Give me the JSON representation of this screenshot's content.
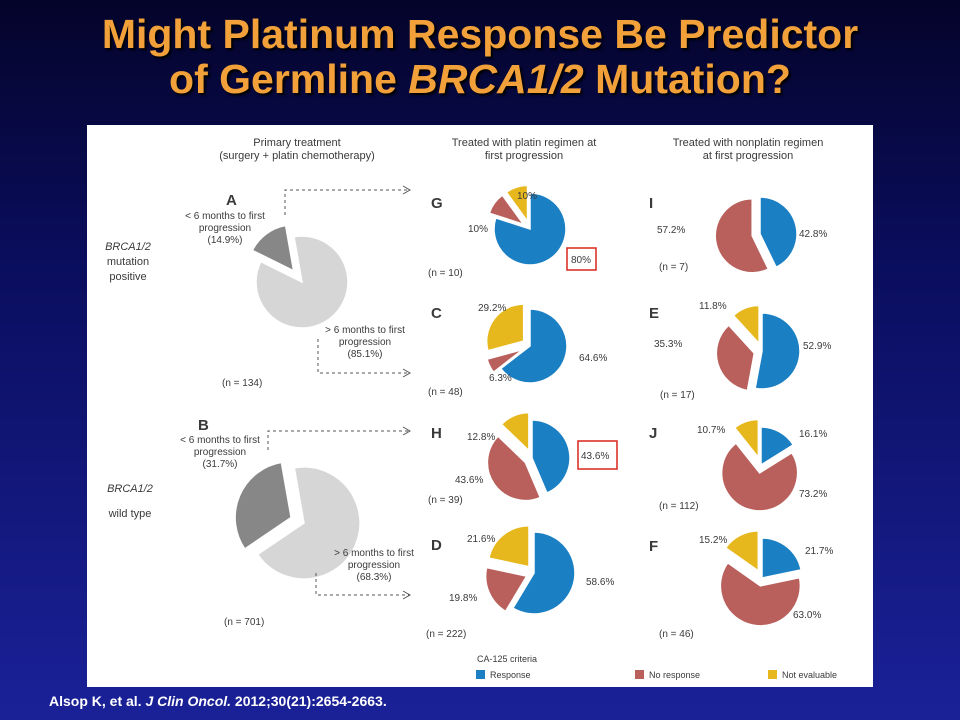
{
  "title": {
    "line1": "Might Platinum Response Be Predictor",
    "line2_pre": "of Germline ",
    "line2_italic": "BRCA1/2",
    "line2_post": " Mutation?"
  },
  "citation": {
    "pre": "Alsop K, et al. ",
    "journal": "J Clin Oncol.",
    "post": " 2012;30(21):2654-2663."
  },
  "colors": {
    "response": "#1b7fc4",
    "no_response": "#b9605c",
    "not_evaluable": "#e7b81d",
    "early_progression": "#878787",
    "late_progression": "#d6d6d6",
    "highlight": "#d9261c"
  },
  "column_headers": {
    "primary": [
      "Primary treatment",
      "(surgery + platin chemotherapy)"
    ],
    "platin": [
      "Treated with platin regimen at",
      "first progression"
    ],
    "nonplatin": [
      "Treated with nonplatin regimen",
      "at first progression"
    ]
  },
  "row_labels": {
    "mutation": [
      "BRCA1/2",
      "mutation",
      "positive"
    ],
    "wildtype": [
      "BRCA1/2",
      "wild type"
    ]
  },
  "legend": {
    "title": "CA-125 criteria",
    "items": [
      "Response",
      "No response",
      "Not evaluable"
    ]
  },
  "chart_data": [
    {
      "type": "pie",
      "id": "A",
      "n": "(n = 134)",
      "slices": [
        {
          "label": "< 6 months to first progression",
          "value": 14.9,
          "display": [
            "< 6 months to first",
            "progression",
            "(14.9%)"
          ]
        },
        {
          "label": "> 6 months to first progression",
          "value": 85.1,
          "display": [
            "> 6 months to first",
            "progression",
            "(85.1%)"
          ]
        }
      ]
    },
    {
      "type": "pie",
      "id": "B",
      "n": "(n = 701)",
      "slices": [
        {
          "label": "< 6 months to first progression",
          "value": 31.7,
          "display": [
            "< 6 months to first",
            "progression",
            "(31.7%)"
          ]
        },
        {
          "label": "> 6 months to first progression",
          "value": 68.3,
          "display": [
            "> 6 months to first",
            "progression",
            "(68.3%)"
          ]
        }
      ]
    },
    {
      "type": "pie",
      "id": "G",
      "n": "(n = 10)",
      "slices": [
        {
          "label": "Response",
          "value": 80,
          "display": "80%",
          "highlight": true
        },
        {
          "label": "No response",
          "value": 10,
          "display": "10%"
        },
        {
          "label": "Not evaluable",
          "value": 10,
          "display": "10%"
        }
      ]
    },
    {
      "type": "pie",
      "id": "C",
      "n": "(n = 48)",
      "slices": [
        {
          "label": "Response",
          "value": 64.6,
          "display": "64.6%"
        },
        {
          "label": "No response",
          "value": 6.3,
          "display": "6.3%"
        },
        {
          "label": "Not evaluable",
          "value": 29.2,
          "display": "29.2%"
        }
      ]
    },
    {
      "type": "pie",
      "id": "H",
      "n": "(n = 39)",
      "slices": [
        {
          "label": "Response",
          "value": 43.6,
          "display": "43.6%",
          "highlight": true
        },
        {
          "label": "No response",
          "value": 43.6,
          "display": "43.6%"
        },
        {
          "label": "Not evaluable",
          "value": 12.8,
          "display": "12.8%"
        }
      ]
    },
    {
      "type": "pie",
      "id": "D",
      "n": "(n = 222)",
      "slices": [
        {
          "label": "Response",
          "value": 58.6,
          "display": "58.6%"
        },
        {
          "label": "No response",
          "value": 19.8,
          "display": "19.8%"
        },
        {
          "label": "Not evaluable",
          "value": 21.6,
          "display": "21.6%"
        }
      ]
    },
    {
      "type": "pie",
      "id": "I",
      "n": "(n = 7)",
      "slices": [
        {
          "label": "Response",
          "value": 42.8,
          "display": "42.8%"
        },
        {
          "label": "No response",
          "value": 57.2,
          "display": "57.2%"
        },
        {
          "label": "Not evaluable",
          "value": 0,
          "display": ""
        }
      ]
    },
    {
      "type": "pie",
      "id": "E",
      "n": "(n = 17)",
      "slices": [
        {
          "label": "Response",
          "value": 52.9,
          "display": "52.9%"
        },
        {
          "label": "No response",
          "value": 35.3,
          "display": "35.3%"
        },
        {
          "label": "Not evaluable",
          "value": 11.8,
          "display": "11.8%"
        }
      ]
    },
    {
      "type": "pie",
      "id": "J",
      "n": "(n = 112)",
      "slices": [
        {
          "label": "Response",
          "value": 16.1,
          "display": "16.1%"
        },
        {
          "label": "No response",
          "value": 73.2,
          "display": "73.2%"
        },
        {
          "label": "Not evaluable",
          "value": 10.7,
          "display": "10.7%"
        }
      ]
    },
    {
      "type": "pie",
      "id": "F",
      "n": "(n = 46)",
      "slices": [
        {
          "label": "Response",
          "value": 21.7,
          "display": "21.7%"
        },
        {
          "label": "No response",
          "value": 63.0,
          "display": "63.0%"
        },
        {
          "label": "Not evaluable",
          "value": 15.2,
          "display": "15.2%"
        }
      ]
    }
  ]
}
